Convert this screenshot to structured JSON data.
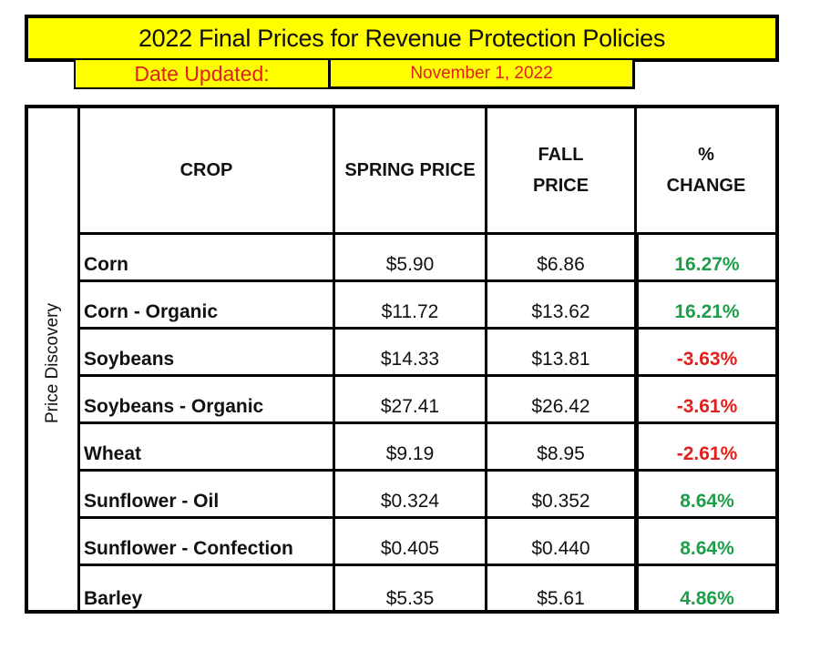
{
  "title": "2022 Final Prices for Revenue Protection Policies",
  "date_label": "Date Updated:",
  "date_value": "November 1, 2022",
  "side_label": "Price Discovery",
  "headers": {
    "crop": "CROP",
    "spring": "SPRING PRICE",
    "fall_1": "FALL",
    "fall_2": "PRICE",
    "change_1": "%",
    "change_2": "CHANGE"
  },
  "colors": {
    "positive": "#1f9e4a",
    "negative": "#e0201a",
    "banner": "#ffff00"
  },
  "rows": [
    {
      "crop": "Corn",
      "spring": "$5.90",
      "fall": "$6.86",
      "change": "16.27%"
    },
    {
      "crop": "Corn - Organic",
      "spring": "$11.72",
      "fall": "$13.62",
      "change": "16.21%"
    },
    {
      "crop": "Soybeans",
      "spring": "$14.33",
      "fall": "$13.81",
      "change": "-3.63%"
    },
    {
      "crop": "Soybeans - Organic",
      "spring": "$27.41",
      "fall": "$26.42",
      "change": "-3.61%"
    },
    {
      "crop": "Wheat",
      "spring": "$9.19",
      "fall": "$8.95",
      "change": "-2.61%"
    },
    {
      "crop": "Sunflower - Oil",
      "spring": "$0.324",
      "fall": "$0.352",
      "change": "8.64%"
    },
    {
      "crop": "Sunflower - Confection",
      "spring": "$0.405",
      "fall": "$0.440",
      "change": "8.64%"
    },
    {
      "crop": "Barley",
      "spring": "$5.35",
      "fall": "$5.61",
      "change": "4.86%"
    }
  ]
}
